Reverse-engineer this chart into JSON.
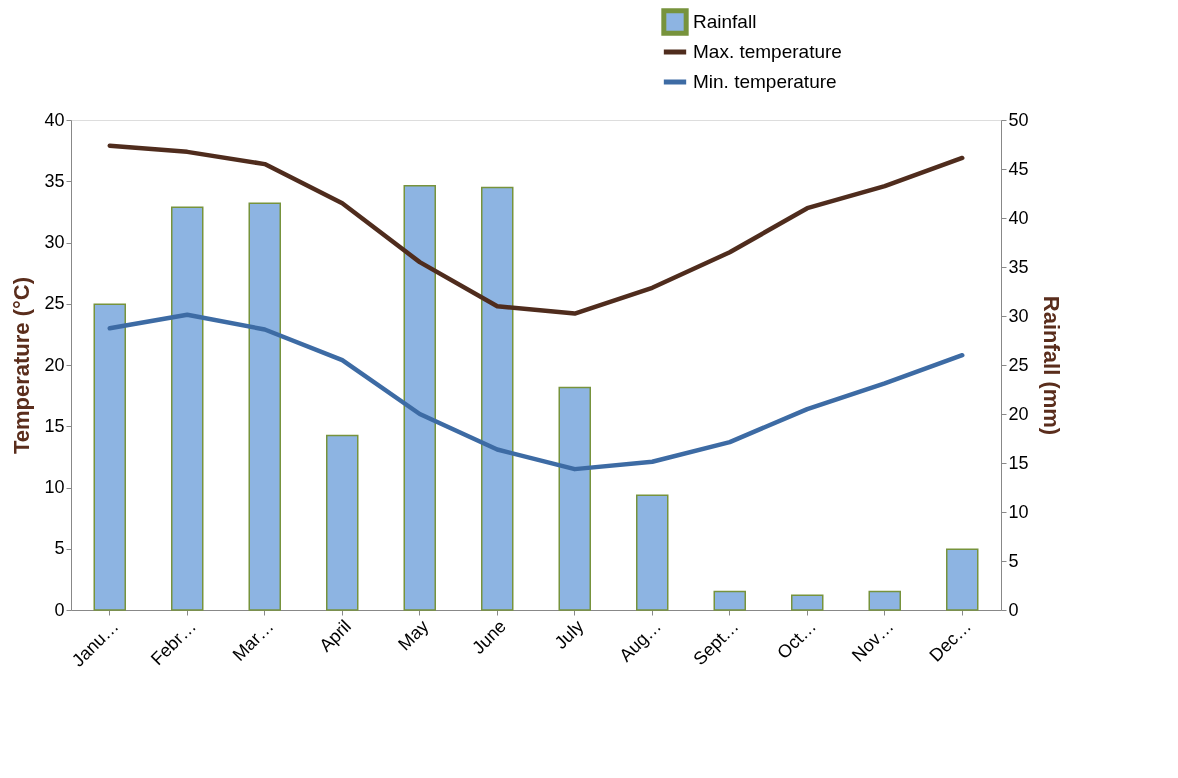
{
  "chart_data": {
    "type": "bar",
    "categories": [
      "Janu…",
      "Febr…",
      "Mar…",
      "April",
      "May",
      "June",
      "July",
      "Aug…",
      "Sept…",
      "Oct…",
      "Nov…",
      "Dec…"
    ],
    "ylabel": "Temperature (°C)",
    "y2label": "Rainfall (mm)",
    "ylim": [
      0,
      40
    ],
    "yticks": [
      0,
      5,
      10,
      15,
      20,
      25,
      30,
      35,
      40
    ],
    "y2lim": [
      0,
      50
    ],
    "y2ticks": [
      0,
      5,
      10,
      15,
      20,
      25,
      30,
      35,
      40,
      45,
      50
    ],
    "series": [
      {
        "name": "Rainfall",
        "axis": "y2",
        "color": "#8db4e2",
        "values": [
          31.2,
          41.1,
          41.5,
          17.8,
          43.3,
          43.1,
          22.7,
          11.7,
          1.9,
          1.5,
          1.9,
          6.2
        ]
      },
      {
        "name": "Max. temperature",
        "type": "line",
        "color": "#4f2c1d",
        "values": [
          37.9,
          37.4,
          36.4,
          33.2,
          28.4,
          24.8,
          24.2,
          26.3,
          29.2,
          32.8,
          34.6,
          36.9
        ]
      },
      {
        "name": "Min. temperature",
        "type": "line",
        "color": "#3d6ba4",
        "values": [
          23.0,
          24.1,
          22.9,
          20.4,
          16.0,
          13.1,
          11.5,
          12.1,
          13.7,
          16.4,
          18.5,
          20.8
        ]
      }
    ],
    "grid": false,
    "legend": "top right",
    "marker": "none"
  }
}
